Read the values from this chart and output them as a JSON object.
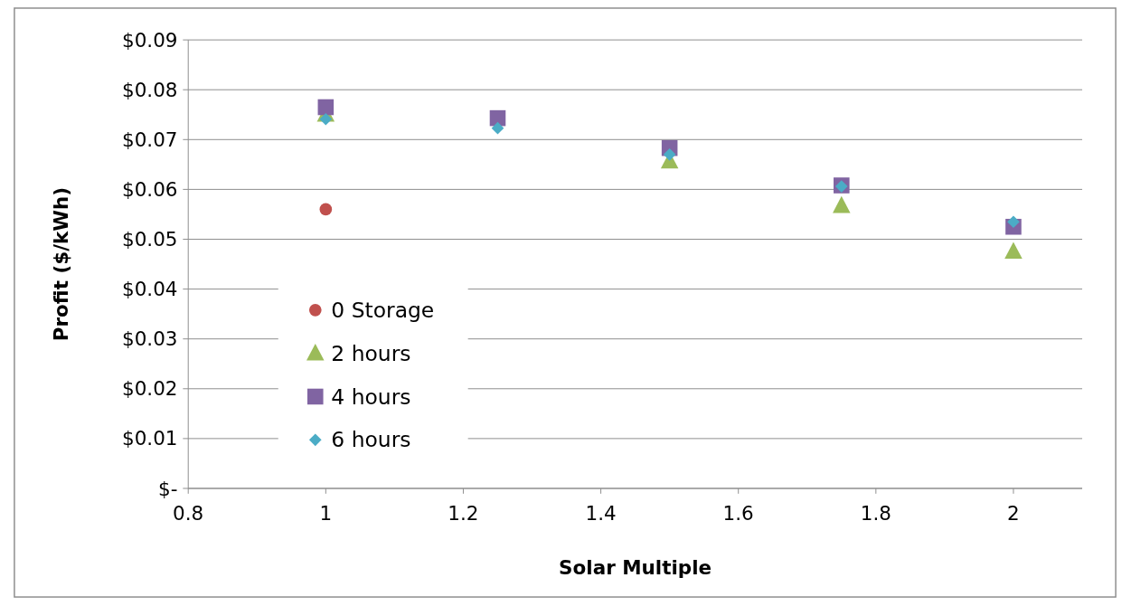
{
  "chart_data": {
    "type": "scatter",
    "xlabel": "Solar Multiple",
    "ylabel": "Profit ($/kWh)",
    "x": [
      1,
      1.25,
      1.5,
      1.75,
      2
    ],
    "series": [
      {
        "name": "0 Storage",
        "color": "#c0504d",
        "marker": "circle",
        "values": [
          0.056,
          null,
          null,
          null,
          null
        ]
      },
      {
        "name": "2 hours",
        "color": "#9bbb59",
        "marker": "triangle",
        "values": [
          0.075,
          null,
          0.0656,
          0.0567,
          0.0475
        ]
      },
      {
        "name": "4 hours",
        "color": "#8064a2",
        "marker": "square",
        "values": [
          0.0765,
          0.0743,
          0.0683,
          0.0608,
          0.0525
        ]
      },
      {
        "name": "6 hours",
        "color": "#4bacc6",
        "marker": "diamond",
        "values": [
          0.0741,
          0.0723,
          0.067,
          0.0606,
          0.0535
        ]
      }
    ],
    "xlim": [
      0.8,
      2.1
    ],
    "xticks": [
      0.8,
      1,
      1.2,
      1.4,
      1.6,
      1.8,
      2
    ],
    "ylim": [
      0,
      0.09
    ],
    "yticks": [
      {
        "value": 0,
        "label": "$-"
      },
      {
        "value": 0.01,
        "label": "$0.01"
      },
      {
        "value": 0.02,
        "label": "$0.02"
      },
      {
        "value": 0.03,
        "label": "$0.03"
      },
      {
        "value": 0.04,
        "label": "$0.04"
      },
      {
        "value": 0.05,
        "label": "$0.05"
      },
      {
        "value": 0.06,
        "label": "$0.06"
      },
      {
        "value": 0.07,
        "label": "$0.07"
      },
      {
        "value": 0.08,
        "label": "$0.08"
      },
      {
        "value": 0.09,
        "label": "$0.09"
      }
    ],
    "grid": "y",
    "legend": "bottom left"
  }
}
